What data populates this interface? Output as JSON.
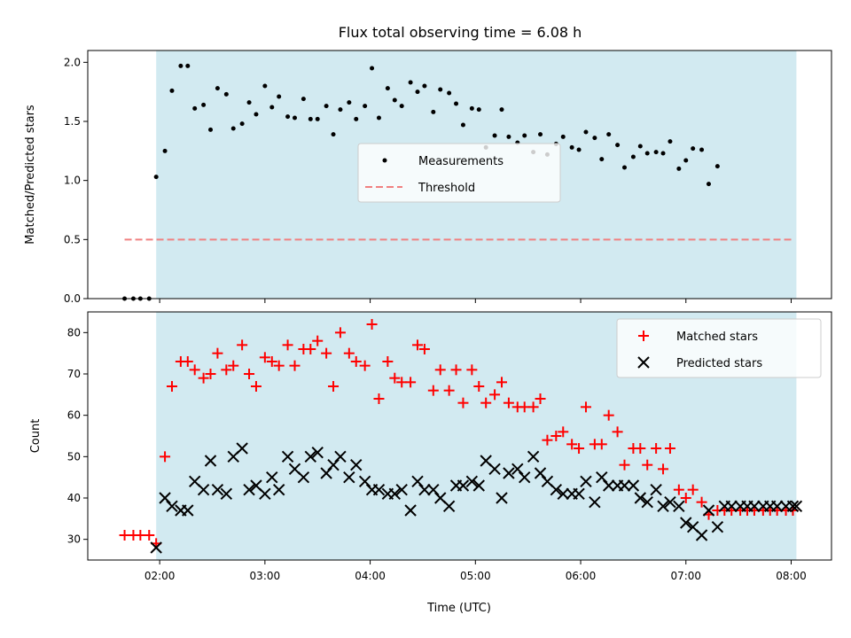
{
  "chart_data": [
    {
      "type": "scatter",
      "title": "Flux total observing time = 6.08 h",
      "ylabel": "Matched/Predicted stars",
      "xlim": [
        "01:19",
        "08:23"
      ],
      "ylim": [
        0,
        2.1
      ],
      "yticks": [
        "0.0",
        "0.5",
        "1.0",
        "1.5",
        "2.0"
      ],
      "shaded_span": [
        "01:58",
        "08:03"
      ],
      "legend_position": "center",
      "series": [
        {
          "name": "Measurements",
          "marker": "dot",
          "color": "#000000",
          "points": [
            [
              "01:40",
              0.0
            ],
            [
              "01:45",
              0.0
            ],
            [
              "01:49",
              0.0
            ],
            [
              "01:54",
              0.0
            ],
            [
              "01:58",
              1.03
            ],
            [
              "02:03",
              1.25
            ],
            [
              "02:07",
              1.76
            ],
            [
              "02:12",
              1.97
            ],
            [
              "02:16",
              1.97
            ],
            [
              "02:20",
              1.61
            ],
            [
              "02:25",
              1.64
            ],
            [
              "02:29",
              1.43
            ],
            [
              "02:33",
              1.78
            ],
            [
              "02:38",
              1.73
            ],
            [
              "02:42",
              1.44
            ],
            [
              "02:47",
              1.48
            ],
            [
              "02:51",
              1.66
            ],
            [
              "02:55",
              1.56
            ],
            [
              "03:00",
              1.8
            ],
            [
              "03:04",
              1.62
            ],
            [
              "03:08",
              1.71
            ],
            [
              "03:13",
              1.54
            ],
            [
              "03:17",
              1.53
            ],
            [
              "03:22",
              1.69
            ],
            [
              "03:26",
              1.52
            ],
            [
              "03:30",
              1.52
            ],
            [
              "03:35",
              1.63
            ],
            [
              "03:39",
              1.39
            ],
            [
              "03:43",
              1.6
            ],
            [
              "03:48",
              1.66
            ],
            [
              "03:52",
              1.52
            ],
            [
              "03:57",
              1.63
            ],
            [
              "04:01",
              1.95
            ],
            [
              "04:05",
              1.53
            ],
            [
              "04:10",
              1.78
            ],
            [
              "04:14",
              1.68
            ],
            [
              "04:18",
              1.63
            ],
            [
              "04:23",
              1.83
            ],
            [
              "04:27",
              1.75
            ],
            [
              "04:31",
              1.8
            ],
            [
              "04:36",
              1.58
            ],
            [
              "04:40",
              1.77
            ],
            [
              "04:45",
              1.74
            ],
            [
              "04:49",
              1.65
            ],
            [
              "04:53",
              1.47
            ],
            [
              "04:58",
              1.61
            ],
            [
              "05:02",
              1.6
            ],
            [
              "05:06",
              1.28
            ],
            [
              "05:11",
              1.38
            ],
            [
              "05:15",
              1.6
            ],
            [
              "05:19",
              1.37
            ],
            [
              "05:24",
              1.32
            ],
            [
              "05:28",
              1.38
            ],
            [
              "05:33",
              1.24
            ],
            [
              "05:37",
              1.39
            ],
            [
              "05:41",
              1.22
            ],
            [
              "05:46",
              1.31
            ],
            [
              "05:50",
              1.37
            ],
            [
              "05:55",
              1.28
            ],
            [
              "05:59",
              1.26
            ],
            [
              "06:03",
              1.41
            ],
            [
              "06:08",
              1.36
            ],
            [
              "06:12",
              1.18
            ],
            [
              "06:16",
              1.39
            ],
            [
              "06:21",
              1.3
            ],
            [
              "06:25",
              1.11
            ],
            [
              "06:30",
              1.2
            ],
            [
              "06:34",
              1.29
            ],
            [
              "06:38",
              1.23
            ],
            [
              "06:43",
              1.24
            ],
            [
              "06:47",
              1.23
            ],
            [
              "06:51",
              1.33
            ],
            [
              "06:56",
              1.1
            ],
            [
              "07:00",
              1.17
            ],
            [
              "07:04",
              1.27
            ],
            [
              "07:09",
              1.26
            ],
            [
              "07:13",
              0.97
            ],
            [
              "07:18",
              1.12
            ]
          ]
        },
        {
          "name": "Threshold",
          "marker": "dashed-line",
          "color": "#f08080",
          "points": [
            [
              "01:40",
              0.5
            ],
            [
              "08:02",
              0.5
            ]
          ]
        }
      ]
    },
    {
      "type": "scatter",
      "xlabel": "Time (UTC)",
      "ylabel": "Count",
      "xlim": [
        "01:19",
        "08:23"
      ],
      "ylim": [
        25,
        85
      ],
      "yticks": [
        "30",
        "40",
        "50",
        "60",
        "70",
        "80"
      ],
      "xticks": [
        "02:00",
        "03:00",
        "04:00",
        "05:00",
        "06:00",
        "07:00",
        "08:00"
      ],
      "shaded_span": [
        "01:58",
        "08:03"
      ],
      "legend_position": "top-right",
      "series": [
        {
          "name": "Matched stars",
          "marker": "plus",
          "color": "#ff0000",
          "x": [
            "01:40",
            "01:45",
            "01:49",
            "01:54",
            "01:58",
            "02:03",
            "02:07",
            "02:12",
            "02:16",
            "02:20",
            "02:25",
            "02:29",
            "02:33",
            "02:38",
            "02:42",
            "02:47",
            "02:51",
            "02:55",
            "03:00",
            "03:04",
            "03:08",
            "03:13",
            "03:17",
            "03:22",
            "03:26",
            "03:30",
            "03:35",
            "03:39",
            "03:43",
            "03:48",
            "03:52",
            "03:57",
            "04:01",
            "04:05",
            "04:10",
            "04:14",
            "04:18",
            "04:23",
            "04:27",
            "04:31",
            "04:36",
            "04:40",
            "04:45",
            "04:49",
            "04:53",
            "04:58",
            "05:02",
            "05:06",
            "05:11",
            "05:15",
            "05:19",
            "05:24",
            "05:28",
            "05:33",
            "05:37",
            "05:41",
            "05:46",
            "05:50",
            "05:55",
            "05:59",
            "06:03",
            "06:08",
            "06:12",
            "06:16",
            "06:21",
            "06:25",
            "06:30",
            "06:34",
            "06:38",
            "06:43",
            "06:47",
            "06:51",
            "06:56",
            "07:00",
            "07:04",
            "07:09",
            "07:13",
            "07:18",
            "07:22",
            "07:26",
            "07:31",
            "07:35",
            "07:39",
            "07:44",
            "07:48",
            "07:52",
            "07:57",
            "08:01"
          ],
          "values": [
            31,
            31,
            31,
            31,
            29,
            50,
            67,
            73,
            73,
            71,
            69,
            70,
            75,
            71,
            72,
            77,
            70,
            67,
            74,
            73,
            72,
            77,
            72,
            76,
            76,
            78,
            75,
            67,
            80,
            75,
            73,
            72,
            82,
            64,
            73,
            69,
            68,
            68,
            77,
            76,
            66,
            71,
            66,
            71,
            63,
            71,
            67,
            63,
            65,
            68,
            63,
            62,
            62,
            62,
            64,
            54,
            55,
            56,
            53,
            52,
            62,
            53,
            53,
            60,
            56,
            48,
            52,
            52,
            48,
            52,
            47,
            52,
            42,
            40,
            42,
            39,
            36,
            37,
            37,
            37,
            37,
            37,
            37,
            37,
            37,
            37,
            37,
            37
          ]
        },
        {
          "name": "Predicted stars",
          "marker": "x",
          "color": "#000000",
          "x": [
            "01:58",
            "02:03",
            "02:07",
            "02:12",
            "02:16",
            "02:20",
            "02:25",
            "02:29",
            "02:33",
            "02:38",
            "02:42",
            "02:47",
            "02:51",
            "02:55",
            "03:00",
            "03:04",
            "03:08",
            "03:13",
            "03:17",
            "03:22",
            "03:26",
            "03:30",
            "03:35",
            "03:39",
            "03:43",
            "03:48",
            "03:52",
            "03:57",
            "04:01",
            "04:05",
            "04:10",
            "04:14",
            "04:18",
            "04:23",
            "04:27",
            "04:31",
            "04:36",
            "04:40",
            "04:45",
            "04:49",
            "04:53",
            "04:58",
            "05:02",
            "05:06",
            "05:11",
            "05:15",
            "05:19",
            "05:24",
            "05:28",
            "05:33",
            "05:37",
            "05:41",
            "05:46",
            "05:50",
            "05:55",
            "05:59",
            "06:03",
            "06:08",
            "06:12",
            "06:16",
            "06:21",
            "06:25",
            "06:30",
            "06:34",
            "06:38",
            "06:43",
            "06:47",
            "06:51",
            "06:56",
            "07:00",
            "07:04",
            "07:09",
            "07:13",
            "07:18",
            "07:22",
            "07:26",
            "07:31",
            "07:35",
            "07:39",
            "07:44",
            "07:48",
            "07:52",
            "07:57",
            "08:01",
            "08:03"
          ],
          "values": [
            28,
            40,
            38,
            37,
            37,
            44,
            42,
            49,
            42,
            41,
            50,
            52,
            42,
            43,
            41,
            45,
            42,
            50,
            47,
            45,
            50,
            51,
            46,
            48,
            50,
            45,
            48,
            44,
            42,
            42,
            41,
            41,
            42,
            37,
            44,
            42,
            42,
            40,
            38,
            43,
            43,
            44,
            43,
            49,
            47,
            40,
            46,
            47,
            45,
            50,
            46,
            44,
            42,
            41,
            41,
            41,
            44,
            39,
            45,
            43,
            43,
            43,
            43,
            40,
            39,
            42,
            38,
            39,
            38,
            34,
            33,
            31,
            37,
            33,
            38,
            38,
            38,
            38,
            38,
            38,
            38,
            38,
            38,
            38,
            38
          ]
        }
      ]
    }
  ]
}
